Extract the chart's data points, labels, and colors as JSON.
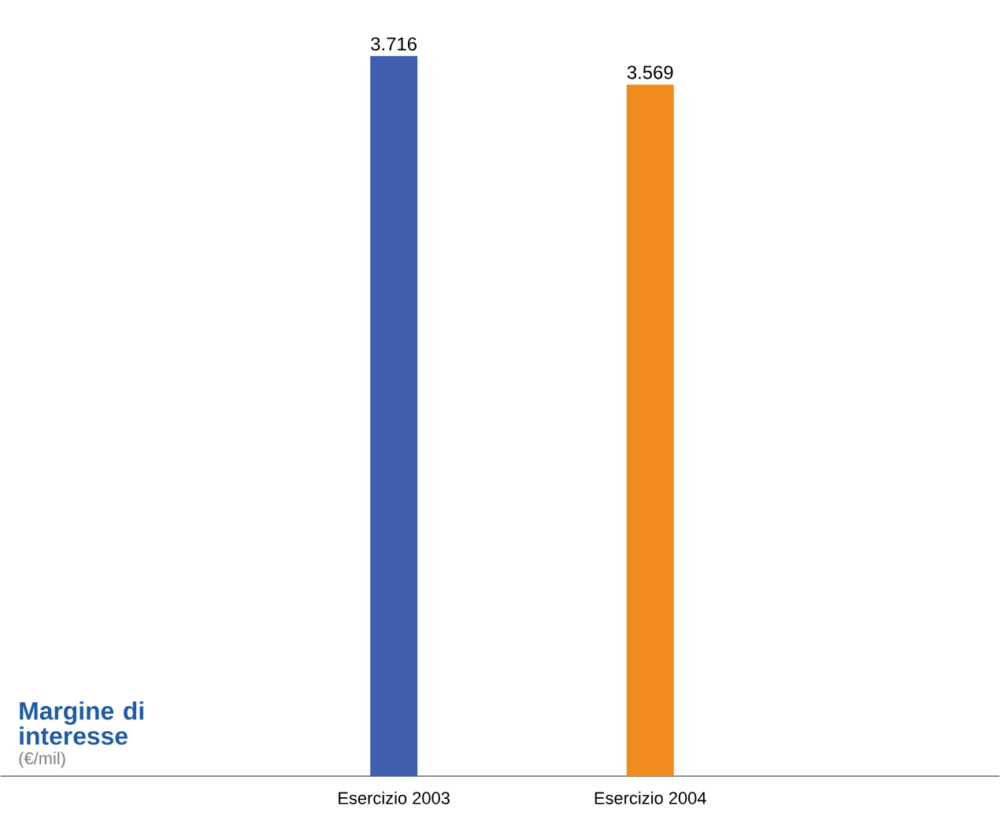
{
  "chart_data": {
    "type": "bar",
    "title": "Margine di interesse",
    "subtitle": "(€/mil)",
    "categories": [
      "Esercizio 2003",
      "Esercizio 2004"
    ],
    "values": [
      3716,
      3569
    ],
    "value_labels": [
      "3.716",
      "3.569"
    ],
    "colors": [
      "#3f5fae",
      "#f08c1e"
    ]
  }
}
